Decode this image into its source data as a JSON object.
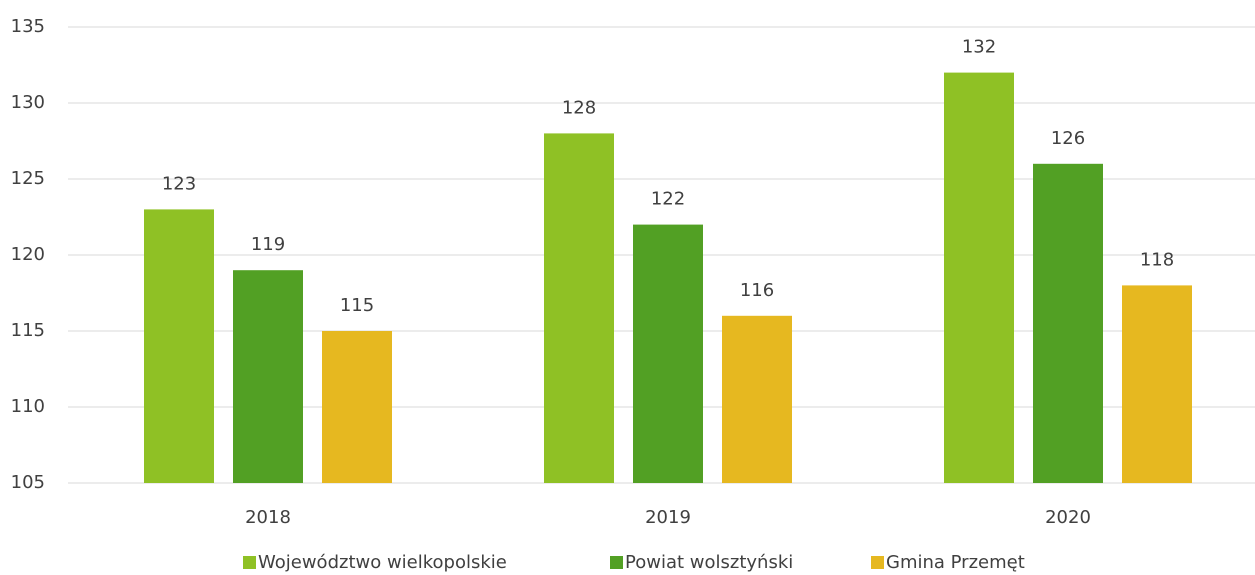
{
  "chart_data": {
    "type": "bar",
    "categories": [
      "2018",
      "2019",
      "2020"
    ],
    "series": [
      {
        "name": "Województwo wielkopolskie",
        "color": "#8fc125",
        "values": [
          123,
          128,
          132
        ]
      },
      {
        "name": "Powiat wolsztyński",
        "color": "#52a024",
        "values": [
          119,
          122,
          126
        ]
      },
      {
        "name": "Gmina Przemęt",
        "color": "#e6b820",
        "values": [
          115,
          116,
          118
        ]
      }
    ],
    "ylim": [
      105,
      135
    ],
    "yticks": [
      105,
      110,
      115,
      120,
      125,
      130,
      135
    ],
    "grid": true,
    "legend": "bottom"
  }
}
